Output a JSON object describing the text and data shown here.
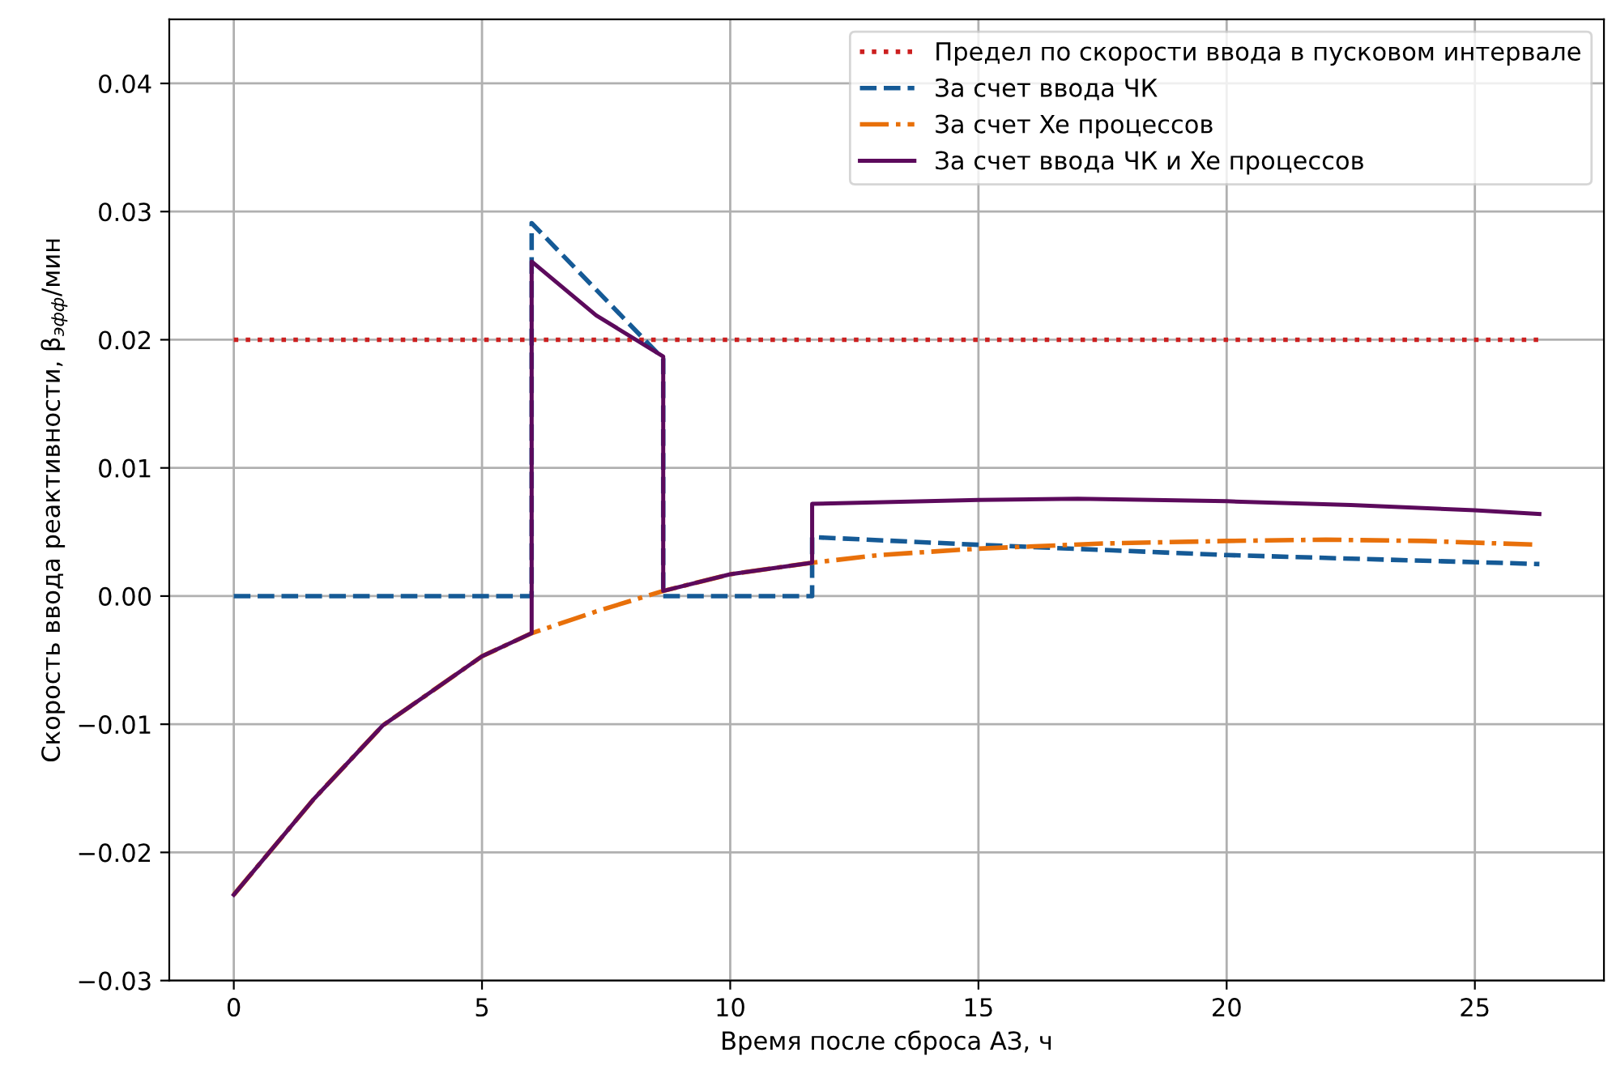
{
  "chart_data": {
    "type": "line",
    "xlabel": "Время после сброса АЗ, ч",
    "ylabel": "Скорость ввода реактивности, β$_{эфф}$/мин",
    "xlim": [
      -1.3,
      27.6
    ],
    "ylim": [
      -0.03,
      0.045
    ],
    "xticks": [
      0,
      5,
      10,
      15,
      20,
      25
    ],
    "yticks": [
      {
        "value": -0.03,
        "label": "−0.03"
      },
      {
        "value": -0.02,
        "label": "−0.02"
      },
      {
        "value": -0.01,
        "label": "−0.01"
      },
      {
        "value": 0,
        "label": "0.00"
      },
      {
        "value": 0.01,
        "label": "0.01"
      },
      {
        "value": 0.02,
        "label": "0.02"
      },
      {
        "value": 0.03,
        "label": "0.03"
      },
      {
        "value": 0.04,
        "label": "0.04"
      }
    ],
    "grid": true,
    "legend": "top right",
    "marker": "none",
    "series": [
      {
        "name": "Предел по скорости ввода в пусковом интервале",
        "color": "#cc1f1f",
        "line_style": "dotted",
        "x": [
          0,
          26.3
        ],
        "values": [
          0.02,
          0.02
        ]
      },
      {
        "name": "За счет ввода ЧК",
        "color": "#155a96",
        "line_style": "dashed",
        "x": [
          0,
          6,
          6,
          8.65,
          8.65,
          11.65,
          11.65,
          15,
          20,
          26.3
        ],
        "values": [
          0,
          0,
          0.0291,
          0.0185,
          0,
          0,
          0.0046,
          0.004,
          0.0032,
          0.0025
        ]
      },
      {
        "name": "За счет Xe процессов",
        "color": "#e8700a",
        "line_style": "dashdot",
        "x": [
          0,
          1.62,
          3,
          5,
          6,
          7.3,
          8.65,
          10,
          11.65,
          13,
          15,
          17.5,
          20,
          22,
          24,
          26.3
        ],
        "values": [
          -0.0233,
          -0.0158,
          -0.0101,
          -0.0047,
          -0.0029,
          -0.0012,
          0.0004,
          0.0017,
          0.0026,
          0.0032,
          0.0037,
          0.0041,
          0.0043,
          0.0044,
          0.0043,
          0.004
        ]
      },
      {
        "name": "За счет ввода ЧК и Xe процессов",
        "color": "#5c0a5c",
        "line_style": "solid",
        "x": [
          0,
          1.62,
          3,
          5,
          6,
          6,
          7.3,
          8.65,
          8.65,
          10,
          11.65,
          11.65,
          15,
          17,
          20,
          22.5,
          25,
          26.3
        ],
        "values": [
          -0.0233,
          -0.0158,
          -0.0101,
          -0.0047,
          -0.0029,
          0.0261,
          0.0219,
          0.0187,
          0.0004,
          0.0017,
          0.0026,
          0.0072,
          0.0075,
          0.0076,
          0.0074,
          0.0071,
          0.0067,
          0.0064
        ]
      }
    ]
  }
}
